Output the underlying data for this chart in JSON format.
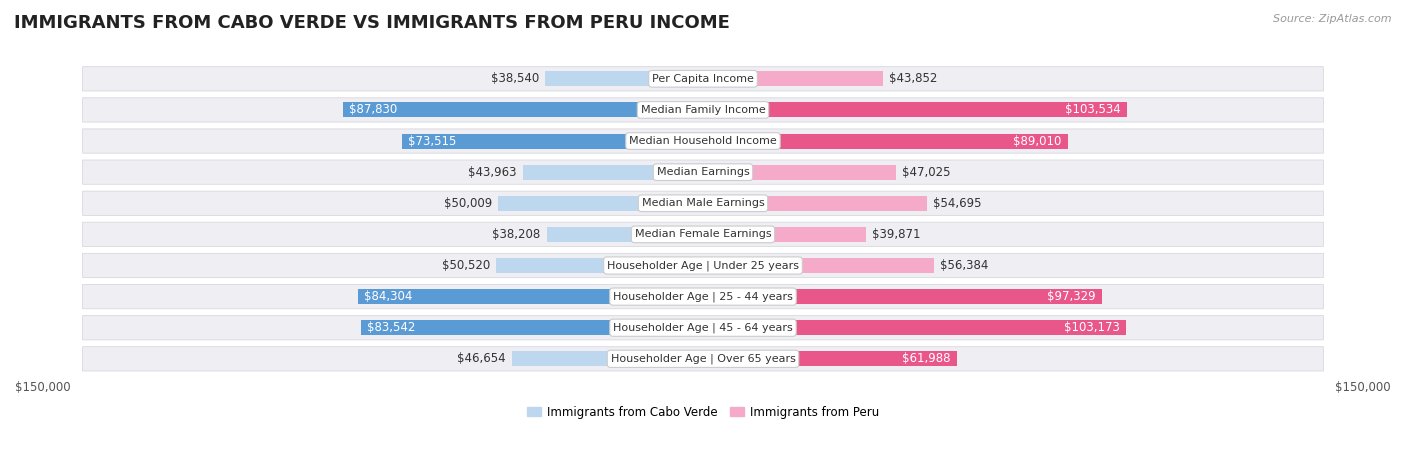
{
  "title": "IMMIGRANTS FROM CABO VERDE VS IMMIGRANTS FROM PERU INCOME",
  "source": "Source: ZipAtlas.com",
  "categories": [
    "Per Capita Income",
    "Median Family Income",
    "Median Household Income",
    "Median Earnings",
    "Median Male Earnings",
    "Median Female Earnings",
    "Householder Age | Under 25 years",
    "Householder Age | 25 - 44 years",
    "Householder Age | 45 - 64 years",
    "Householder Age | Over 65 years"
  ],
  "cabo_verde_values": [
    38540,
    87830,
    73515,
    43963,
    50009,
    38208,
    50520,
    84304,
    83542,
    46654
  ],
  "peru_values": [
    43852,
    103534,
    89010,
    47025,
    54695,
    39871,
    56384,
    97329,
    103173,
    61988
  ],
  "cabo_verde_labels": [
    "$38,540",
    "$87,830",
    "$73,515",
    "$43,963",
    "$50,009",
    "$38,208",
    "$50,520",
    "$84,304",
    "$83,542",
    "$46,654"
  ],
  "peru_labels": [
    "$43,852",
    "$103,534",
    "$89,010",
    "$47,025",
    "$54,695",
    "$39,871",
    "$56,384",
    "$97,329",
    "$103,173",
    "$61,988"
  ],
  "cabo_verde_color_strong": "#5b9bd5",
  "cabo_verde_color_light": "#bdd7ee",
  "peru_color_strong": "#e9578a",
  "peru_color_light": "#f4aac8",
  "cabo_strong_threshold": 60000,
  "peru_strong_threshold": 60000,
  "max_value": 150000,
  "background_color": "#ffffff",
  "row_bg_even": "#f5f5f8",
  "row_bg_odd": "#ededf2",
  "legend_cabo_verde": "Immigrants from Cabo Verde",
  "legend_peru": "Immigrants from Peru",
  "title_fontsize": 13,
  "label_fontsize": 8.5,
  "cat_fontsize": 8,
  "source_fontsize": 8,
  "value_label_dark": "#333333",
  "value_label_white": "#ffffff"
}
